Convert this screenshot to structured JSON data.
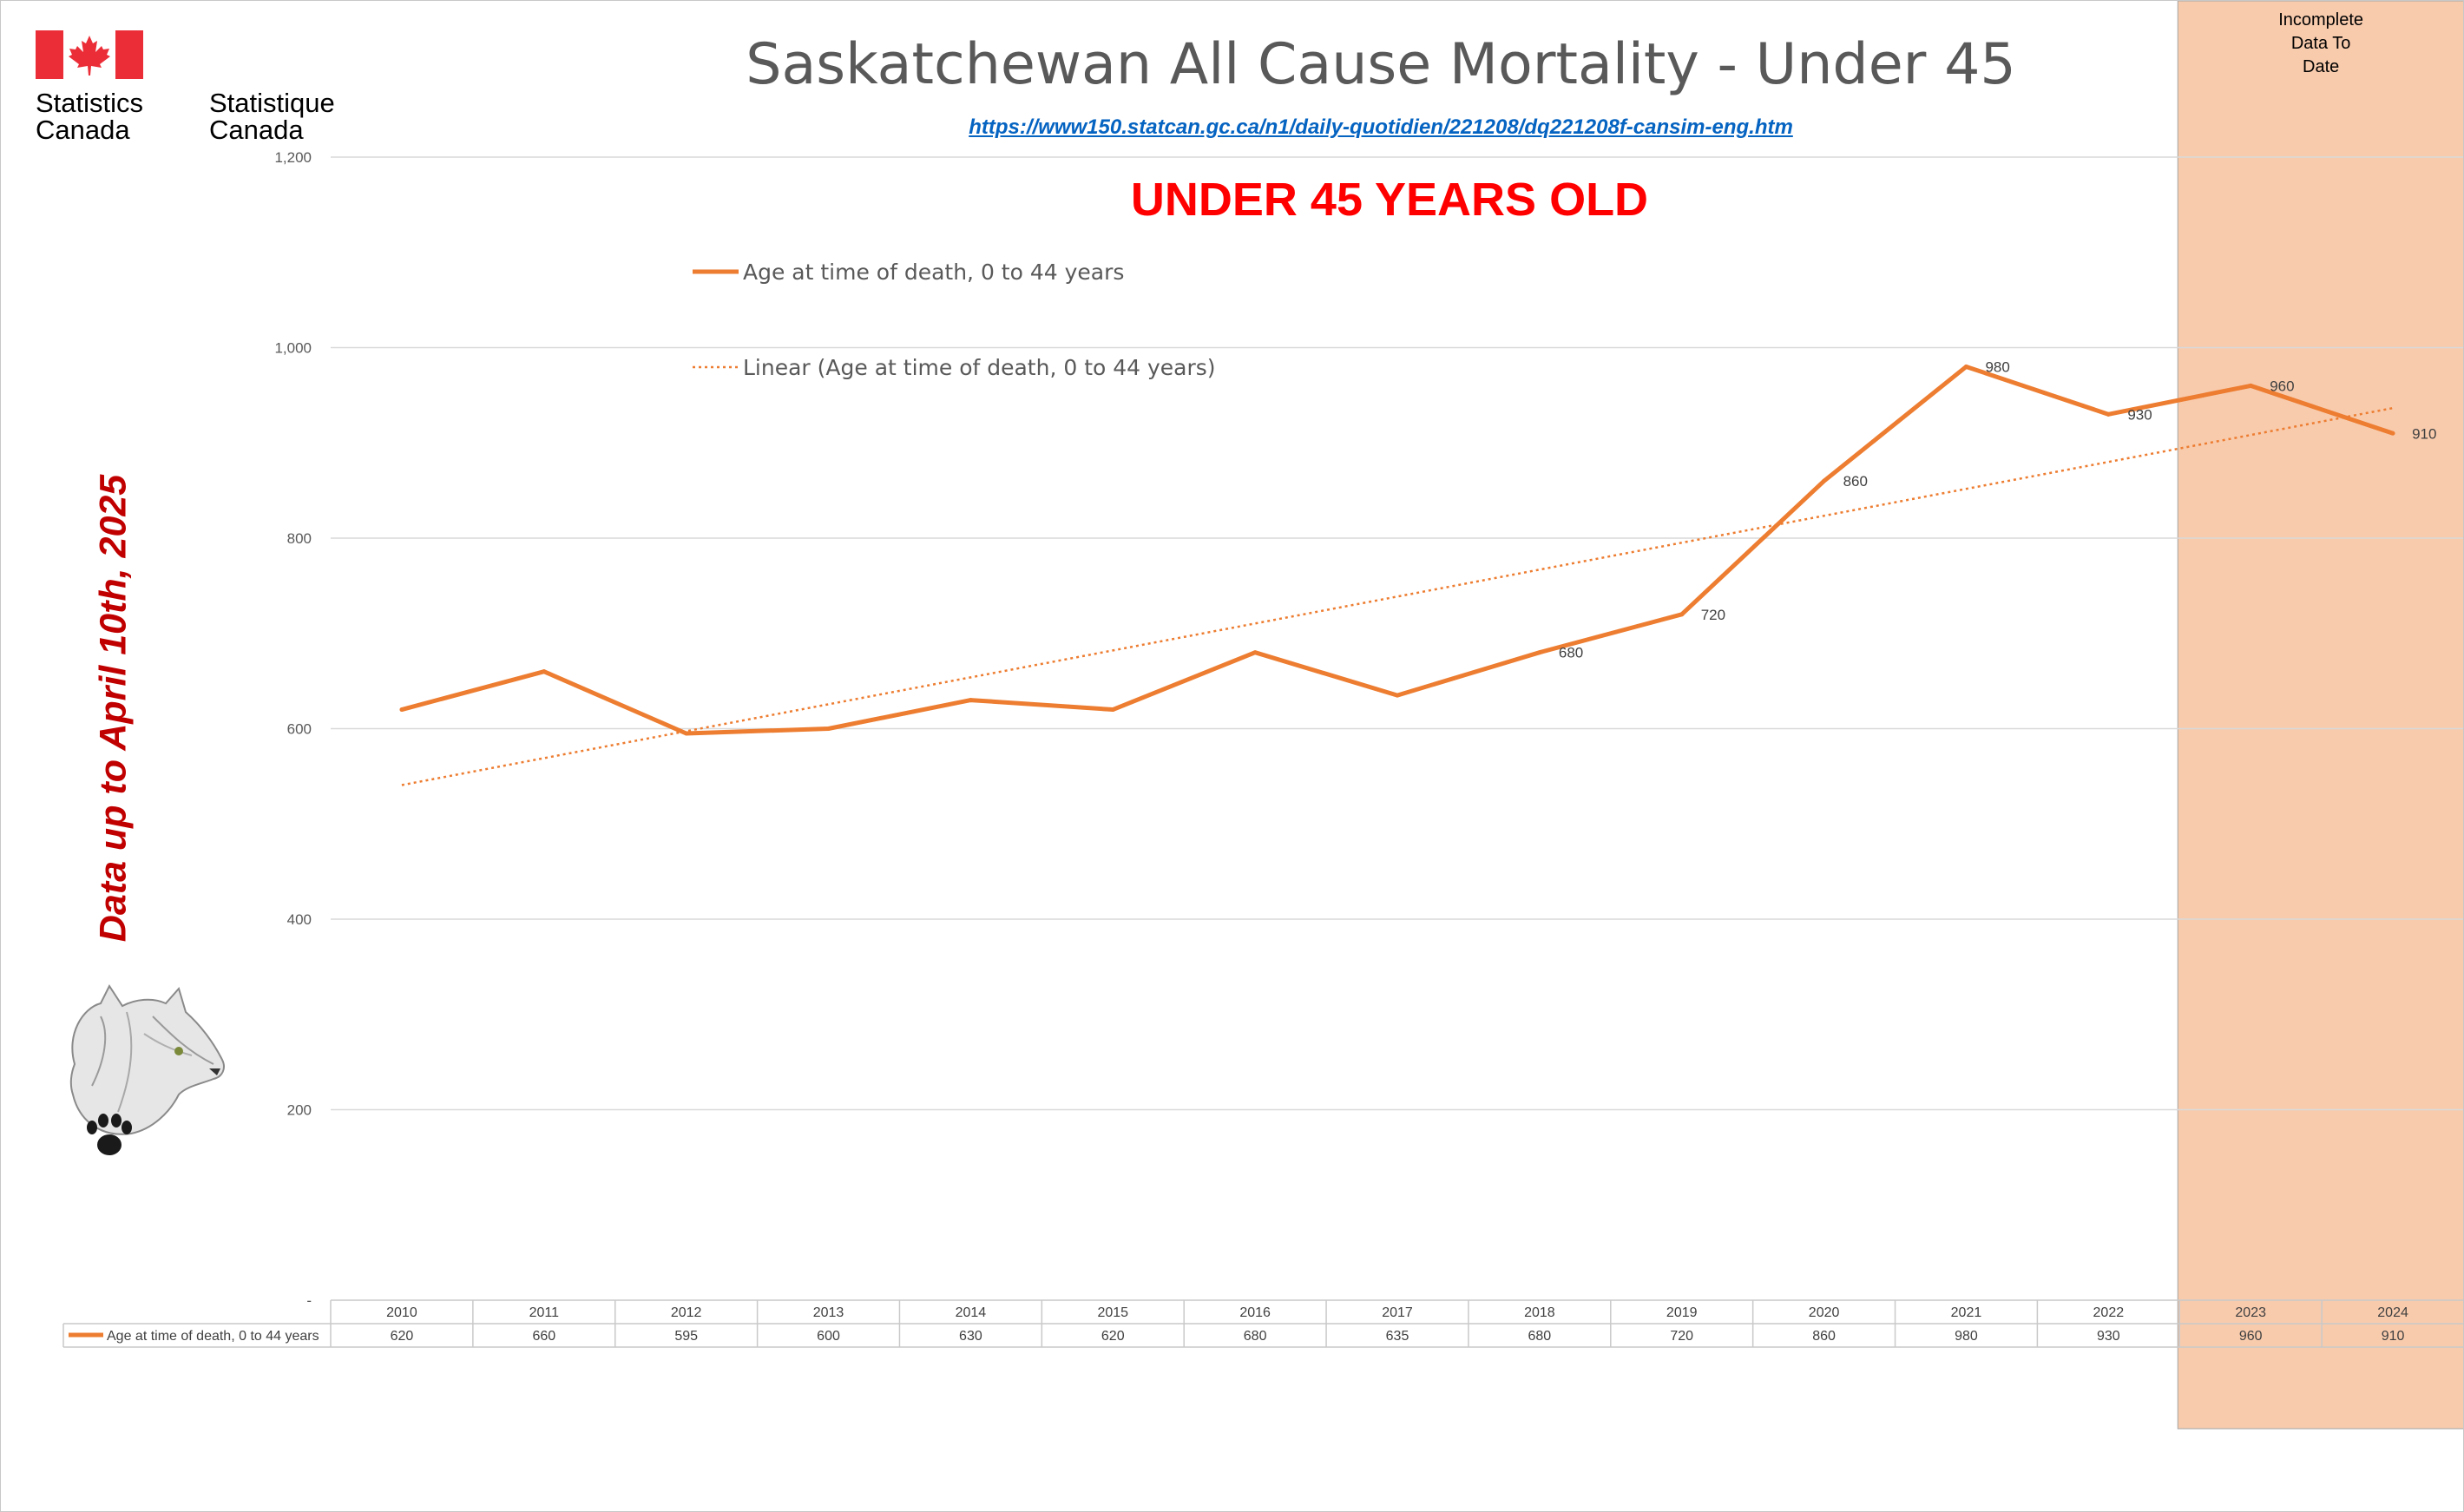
{
  "logo": {
    "english_line1": "Statistics",
    "english_line2": "Canada",
    "french_line1": "Statistique",
    "french_line2": "Canada",
    "flag_color": "#eb2d37"
  },
  "header": {
    "title": "Saskatchewan All Cause Mortality - Under 45",
    "source_url": "https://www150.statcan.gc.ca/n1/daily-quotidien/221208/dq221208f-cansim-eng.htm",
    "subtitle": "UNDER 45 YEARS OLD"
  },
  "side_note": "Data up to April 10th, 2025",
  "mascot_icon": "wolf-head-with-paw-print",
  "incomplete_band": {
    "label_line1": "Incomplete",
    "label_line2": "Data To",
    "label_line3": "Date",
    "from_year": "2023",
    "to_year": "2024",
    "color": "#f8cbad"
  },
  "chart_data": {
    "type": "line",
    "categories": [
      "2010",
      "2011",
      "2012",
      "2013",
      "2014",
      "2015",
      "2016",
      "2017",
      "2018",
      "2019",
      "2020",
      "2021",
      "2022",
      "2023",
      "2024"
    ],
    "series": [
      {
        "name": "Age at time of death, 0 to 44 years",
        "values": [
          620,
          660,
          595,
          600,
          630,
          620,
          680,
          635,
          680,
          720,
          860,
          980,
          930,
          960,
          910
        ],
        "color": "#ed7d31"
      }
    ],
    "trendline": {
      "name": "Linear (Age at time of death, 0 to 44 years)",
      "type": "linear",
      "color": "#ed7d31"
    },
    "point_labels_years": [
      "2018",
      "2019",
      "2020",
      "2021",
      "2022",
      "2023",
      "2024"
    ],
    "y_ticks": [
      "-",
      "200",
      "400",
      "600",
      "800",
      "1,000",
      "1,200"
    ],
    "ylim": [
      0,
      1200
    ],
    "grid": true,
    "legend_position": "top-left",
    "data_table": true
  }
}
